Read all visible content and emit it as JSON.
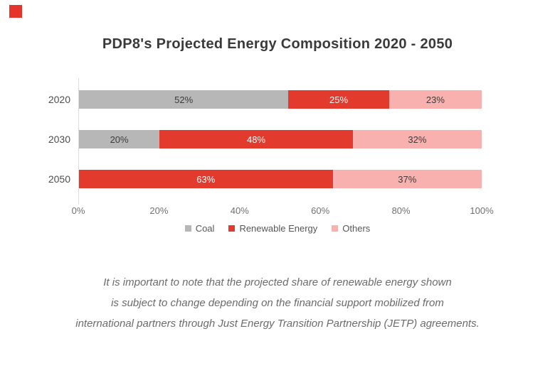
{
  "brand": {
    "color": "#e5352b"
  },
  "title": "PDP8's Projected Energy Composition 2020 - 2050",
  "chart_data": {
    "type": "bar",
    "orientation": "horizontal",
    "stacked": true,
    "title": "PDP8's Projected Energy Composition 2020 - 2050",
    "categories": [
      "2020",
      "2030",
      "2050"
    ],
    "series": [
      {
        "name": "Coal",
        "color": "#b7b7b7",
        "label_color": "#3c3c3c",
        "values": [
          52,
          20,
          0
        ]
      },
      {
        "name": "Renewable Energy",
        "color": "#e23a2c",
        "label_color": "#ffffff",
        "values": [
          25,
          48,
          63
        ]
      },
      {
        "name": "Others",
        "color": "#f8b1ae",
        "label_color": "#3c3c3c",
        "values": [
          23,
          32,
          37
        ]
      }
    ],
    "value_suffix": "%",
    "xlim": [
      0,
      100
    ],
    "x_ticks": [
      "0%",
      "20%",
      "40%",
      "60%",
      "80%",
      "100%"
    ],
    "grid": false,
    "legend_position": "bottom"
  },
  "note": {
    "lines": [
      "It is important to note that the projected share of renewable energy shown",
      "is subject to change depending on the financial support mobilized from",
      "international partners through Just Energy Transition Partnership (JETP) agreements."
    ]
  }
}
